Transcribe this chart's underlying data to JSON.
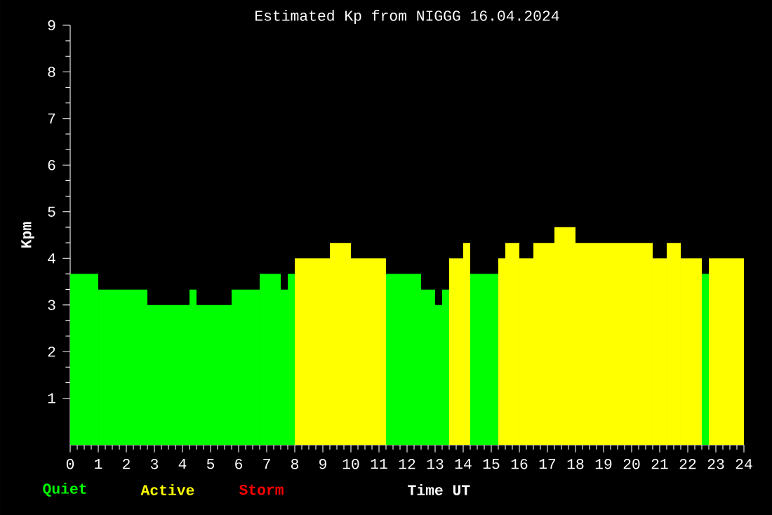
{
  "chart_data": {
    "type": "histogram",
    "title": "Estimated Kp from NIGGG 16.04.2024",
    "xlabel": "Time UT",
    "ylabel": "Kpm",
    "bins": [
      0,
      1,
      2.75,
      4.25,
      4.5,
      5.75,
      6.75,
      7.5,
      7.75,
      8,
      9.25,
      10,
      11.25,
      12.5,
      13,
      13.25,
      13.5,
      14,
      14.25,
      15.25,
      15.5,
      16,
      16.5,
      17.25,
      18,
      20.75,
      21.25,
      21.75,
      22.5,
      22.75,
      24
    ],
    "series": [
      {
        "name": "Quiet",
        "color": "#00ff00",
        "values": [
          3.67,
          3.33,
          3,
          3.33,
          3,
          3.33,
          3.67,
          3.33,
          3.67,
          null,
          null,
          null,
          3.67,
          3.33,
          3,
          3.33,
          null,
          null,
          3.67,
          null,
          null,
          null,
          null,
          null,
          null,
          null,
          null,
          null,
          3.67,
          null
        ]
      },
      {
        "name": "Active",
        "color": "#ffff00",
        "values": [
          null,
          null,
          null,
          null,
          null,
          null,
          null,
          null,
          null,
          4,
          4.33,
          4,
          null,
          null,
          null,
          null,
          4,
          4.33,
          null,
          4,
          4.33,
          4,
          4.33,
          4.67,
          4.33,
          4,
          4.33,
          4,
          null,
          4
        ]
      }
    ],
    "annotations": [
      "Storm"
    ],
    "xlim": [
      0,
      24
    ],
    "ylim": [
      0,
      9
    ],
    "xticks": [
      0,
      1,
      2,
      3,
      4,
      5,
      6,
      7,
      8,
      9,
      10,
      11,
      12,
      13,
      14,
      15,
      16,
      17,
      18,
      19,
      20,
      21,
      22,
      23,
      24
    ],
    "yticks": [
      1,
      2,
      3,
      4,
      5,
      6,
      7,
      8,
      9
    ],
    "legend": "bottom",
    "grid": false
  }
}
